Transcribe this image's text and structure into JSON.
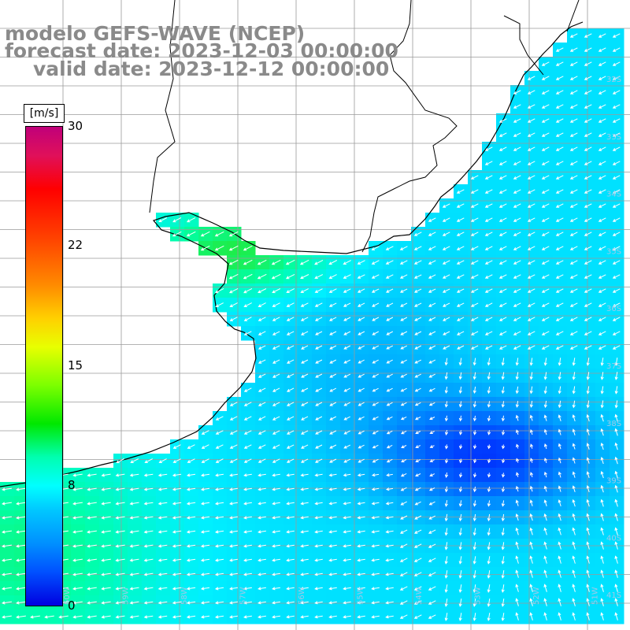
{
  "title": {
    "line1": "modelo GEFS-WAVE (NCEP)",
    "line2": "forecast date: 2023-12-03 00:00:00",
    "line3": "valid date: 2023-12-12 00:00:00"
  },
  "colorbar": {
    "unit": "[m/s]",
    "ticks": [
      "30",
      "22",
      "15",
      "8",
      "0"
    ],
    "tick_values": [
      30,
      22,
      15,
      8,
      0
    ],
    "min": 0,
    "max": 30
  },
  "lat_labels": [
    "32S",
    "33S",
    "34S",
    "35S",
    "36S",
    "37S",
    "38S",
    "39S",
    "40S",
    "41S"
  ],
  "lon_labels": [
    "60W",
    "59W",
    "58W",
    "57W",
    "56W",
    "55W",
    "54W",
    "53W",
    "52W",
    "51W"
  ],
  "colors": {
    "land": "#ffffff",
    "coast": "#000000",
    "grid": "#9a9a9a",
    "vector": "#ffffff"
  },
  "legend_placement": "left"
}
